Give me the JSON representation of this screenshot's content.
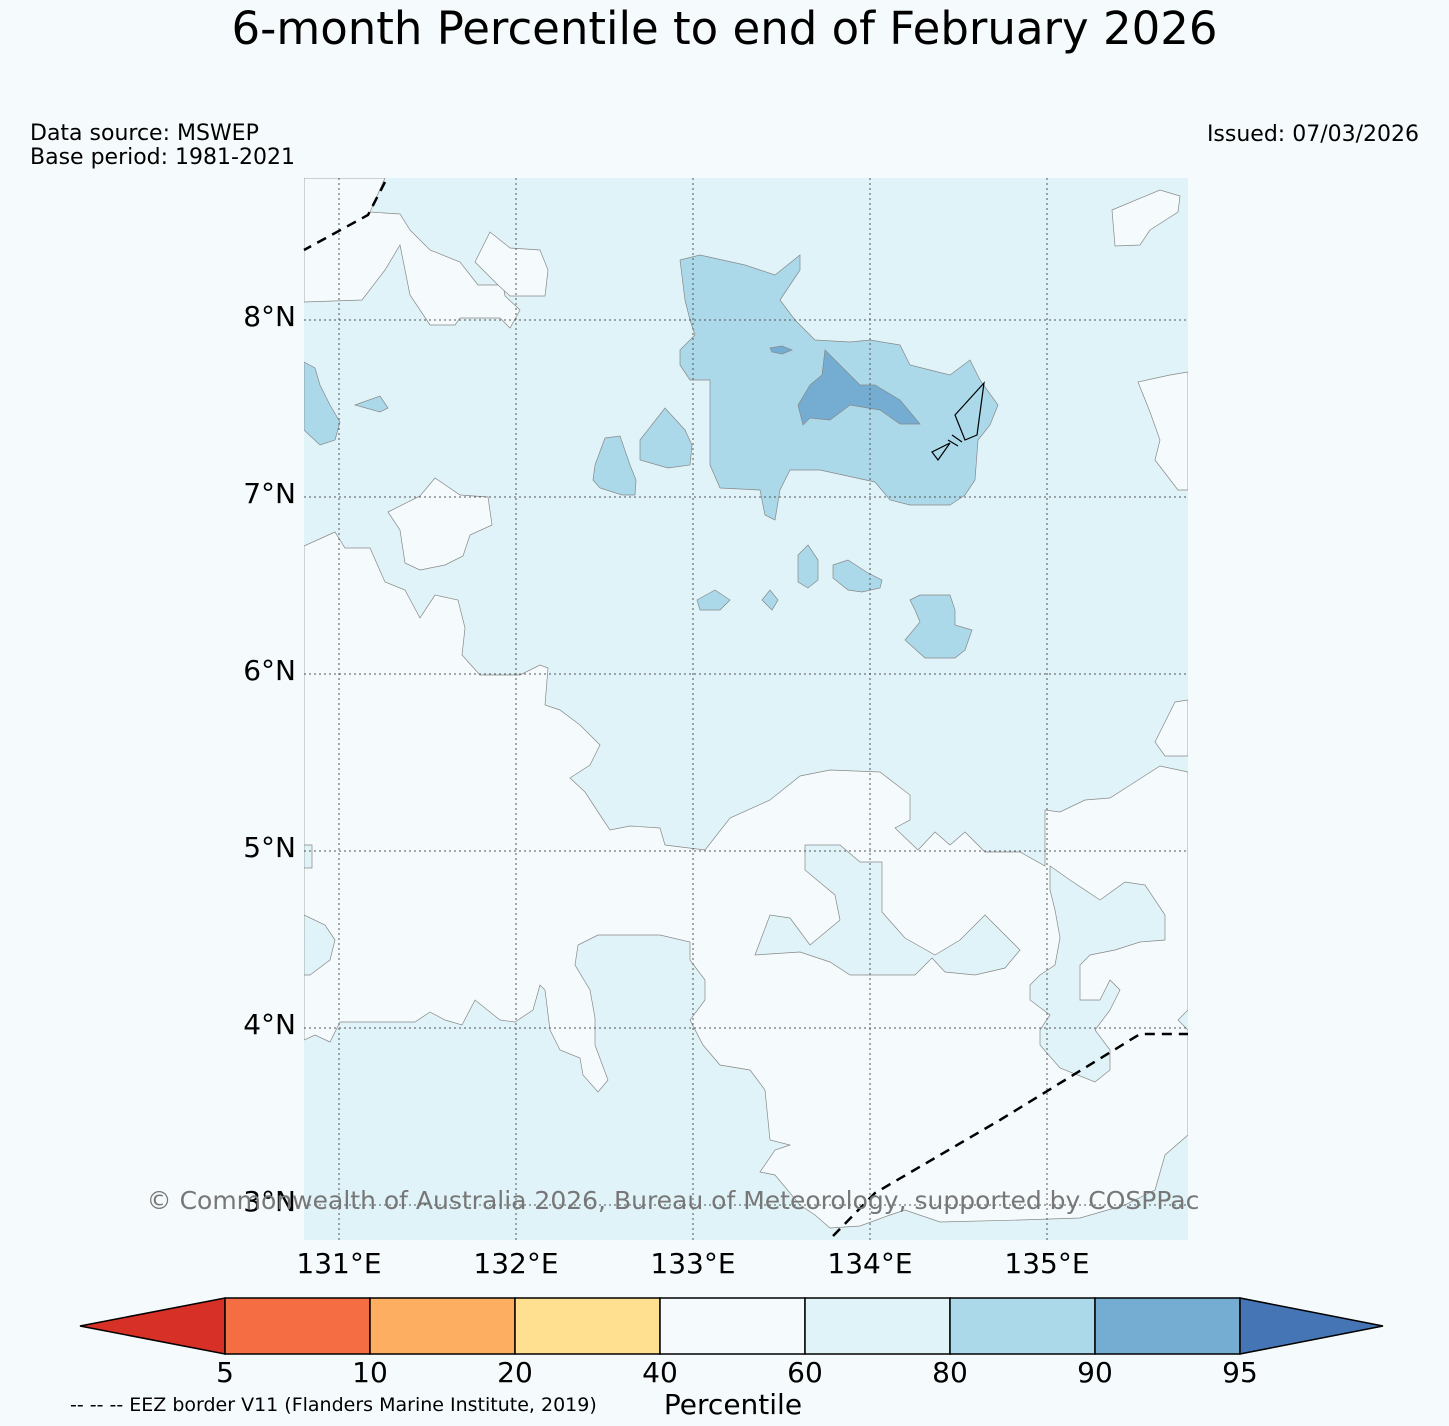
{
  "title": "6-month Percentile to end of February 2026",
  "info": {
    "data_source": "Data source: MSWEP",
    "base_period": "Base period: 1981-2021",
    "issued": "Issued: 07/03/2026"
  },
  "map": {
    "lat_labels": [
      "8°N",
      "7°N",
      "6°N",
      "5°N",
      "4°N",
      "3°N"
    ],
    "lon_labels": [
      "131°E",
      "132°E",
      "133°E",
      "134°E",
      "135°E"
    ],
    "extent": {
      "lon_min": 130.8,
      "lon_max": 135.8,
      "lat_min": 2.8,
      "lat_max": 8.8
    },
    "copyright": "© Commonwealth of Australia 2026, Bureau of Meteorology, supported by COSPPac",
    "colors": {
      "60-80": "#f5fbfc",
      "80-90": "#e0f3f8",
      "90-95": "#abd9e9",
      "above-95": "#74add1"
    }
  },
  "colorbar": {
    "label": "Percentile",
    "ticks": [
      "5",
      "10",
      "20",
      "40",
      "60",
      "80",
      "90",
      "95"
    ],
    "colors": [
      "#d73027",
      "#f46d43",
      "#fdae61",
      "#fee090",
      "#f5fbfc",
      "#e0f3f8",
      "#abd9e9",
      "#74add1",
      "#4575b4"
    ]
  },
  "footnote": "-- -- -- EEZ border V11 (Flanders Marine Institute, 2019)"
}
